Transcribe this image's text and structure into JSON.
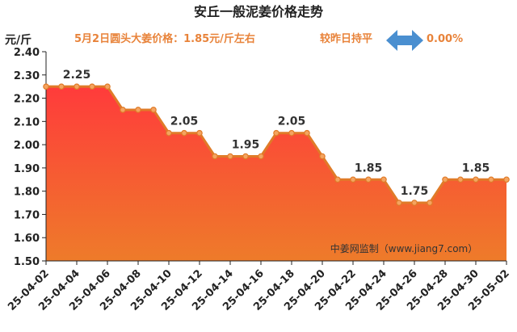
{
  "chart_data": {
    "type": "area",
    "title": "安丘一般泥姜价格走势",
    "subtitle": "5月2日圆头大姜价格：1.85元/斤左右",
    "compare_label": "较昨日持平",
    "compare_value": "0.00%",
    "unit_label": "元/斤",
    "watermark": "中姜网监制（www.jiang7.com）",
    "ylim": [
      1.5,
      2.4
    ],
    "y_ticks": [
      "1.50",
      "1.60",
      "1.70",
      "1.80",
      "1.90",
      "2.00",
      "2.10",
      "2.20",
      "2.30",
      "2.40"
    ],
    "x_ticks": [
      "25-04-02",
      "25-04-04",
      "25-04-06",
      "25-04-08",
      "25-04-10",
      "25-04-12",
      "25-04-14",
      "25-04-16",
      "25-04-18",
      "25-04-20",
      "25-04-22",
      "25-04-24",
      "25-04-26",
      "25-04-28",
      "25-04-30",
      "25-05-02"
    ],
    "x": [
      "25-04-02",
      "25-04-03",
      "25-04-04",
      "25-04-05",
      "25-04-06",
      "25-04-07",
      "25-04-08",
      "25-04-09",
      "25-04-10",
      "25-04-11",
      "25-04-12",
      "25-04-13",
      "25-04-14",
      "25-04-15",
      "25-04-16",
      "25-04-17",
      "25-04-18",
      "25-04-19",
      "25-04-20",
      "25-04-21",
      "25-04-22",
      "25-04-23",
      "25-04-24",
      "25-04-25",
      "25-04-26",
      "25-04-27",
      "25-04-28",
      "25-04-29",
      "25-04-30",
      "25-05-01",
      "25-05-02"
    ],
    "values": [
      2.25,
      2.25,
      2.25,
      2.25,
      2.25,
      2.15,
      2.15,
      2.15,
      2.05,
      2.05,
      2.05,
      1.95,
      1.95,
      1.95,
      1.95,
      2.05,
      2.05,
      2.05,
      1.95,
      1.85,
      1.85,
      1.85,
      1.85,
      1.75,
      1.75,
      1.75,
      1.85,
      1.85,
      1.85,
      1.85,
      1.85
    ],
    "data_labels": [
      {
        "x": "25-04-04",
        "text": "2.25"
      },
      {
        "x": "25-04-11",
        "text": "2.05"
      },
      {
        "x": "25-04-15",
        "text": "1.95"
      },
      {
        "x": "25-04-18",
        "text": "2.05"
      },
      {
        "x": "25-04-23",
        "text": "1.85"
      },
      {
        "x": "25-04-26",
        "text": "1.75"
      },
      {
        "x": "25-04-30",
        "text": "1.85"
      }
    ],
    "grid": false,
    "colors": {
      "line": "#E07B28",
      "marker_fill": "#F4A460",
      "area_top": "#FF3B3B",
      "area_bottom": "#EE7B2A",
      "accent_text": "#E8833A",
      "arrow": "#4A8FD0"
    }
  }
}
